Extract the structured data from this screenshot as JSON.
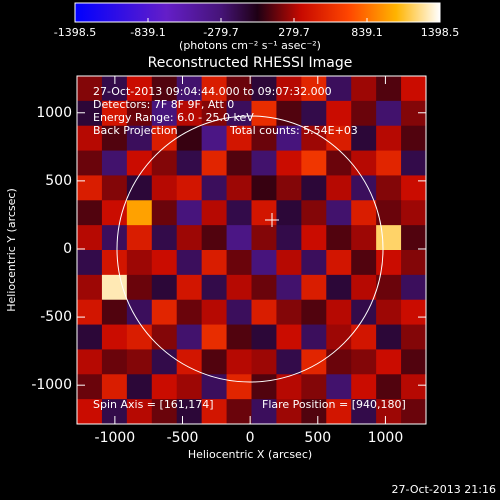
{
  "chart_data": {
    "type": "heatmap",
    "title": "Reconstructed RHESSI Image",
    "colorbar_label": "(photons cm⁻² s⁻¹ asec⁻²)",
    "clim": [
      -1398.5,
      1398.5
    ],
    "colorbar_ticks": [
      -1398.5,
      -839.1,
      -279.7,
      279.7,
      839.1,
      1398.5
    ],
    "x_label": "Heliocentric X (arcsec)",
    "y_label": "Heliocentric Y (arcsec)",
    "xlim": [
      -1280,
      1300
    ],
    "ylim": [
      -1285,
      1270
    ],
    "xticks": [
      -1000,
      -500,
      0,
      500,
      1000
    ],
    "yticks": [
      -1000,
      -500,
      0,
      500,
      1000
    ],
    "annotations": [
      "27-Oct-2013 09:04:44.000 to 09:07:32.000",
      "Detectors: 7F 8F 9F, Att 0",
      "Energy Range: 6.0 - 25.0 keV",
      "Back Projection",
      "Total counts: 5.54E+03"
    ],
    "spin_axis": "Spin Axis = [161,174]",
    "flare_position": "Flare Position = [940,180]",
    "timestamp": "27-Oct-2013 21:16",
    "z": [
      [
        200,
        -150,
        350,
        100,
        -250,
        450,
        150,
        -100,
        300,
        500,
        -200,
        250,
        100,
        350
      ],
      [
        -100,
        400,
        150,
        -300,
        300,
        200,
        -200,
        550,
        100,
        -150,
        350,
        150,
        -250,
        200
      ],
      [
        300,
        100,
        -200,
        450,
        50,
        -350,
        400,
        150,
        -300,
        250,
        450,
        -100,
        300,
        100
      ],
      [
        150,
        -250,
        350,
        200,
        -150,
        500,
        100,
        -250,
        350,
        600,
        150,
        300,
        500,
        -150
      ],
      [
        450,
        200,
        -100,
        300,
        400,
        -200,
        250,
        50,
        200,
        -100,
        300,
        -200,
        200,
        350
      ],
      [
        100,
        350,
        1000,
        150,
        -300,
        300,
        -150,
        400,
        -100,
        200,
        -250,
        450,
        150,
        250
      ],
      [
        300,
        -200,
        450,
        -150,
        250,
        100,
        -350,
        200,
        -150,
        350,
        100,
        250,
        1200,
        100
      ],
      [
        -150,
        400,
        250,
        350,
        -200,
        450,
        150,
        -300,
        300,
        -200,
        400,
        100,
        350,
        200
      ],
      [
        250,
        1300,
        150,
        -100,
        400,
        -150,
        300,
        150,
        -250,
        450,
        -100,
        300,
        150,
        -200
      ],
      [
        400,
        100,
        -200,
        500,
        150,
        300,
        -200,
        450,
        200,
        100,
        300,
        -150,
        250,
        350
      ],
      [
        -100,
        350,
        450,
        200,
        -250,
        550,
        100,
        -100,
        350,
        -200,
        250,
        400,
        -100,
        200
      ],
      [
        300,
        150,
        200,
        -150,
        400,
        100,
        300,
        250,
        -150,
        500,
        150,
        200,
        350,
        100
      ],
      [
        150,
        450,
        -100,
        350,
        250,
        -200,
        500,
        100,
        300,
        200,
        -250,
        350,
        100,
        300
      ],
      [
        350,
        -150,
        300,
        150,
        -100,
        400,
        150,
        -200,
        250,
        100,
        400,
        -150,
        250,
        150
      ]
    ]
  }
}
